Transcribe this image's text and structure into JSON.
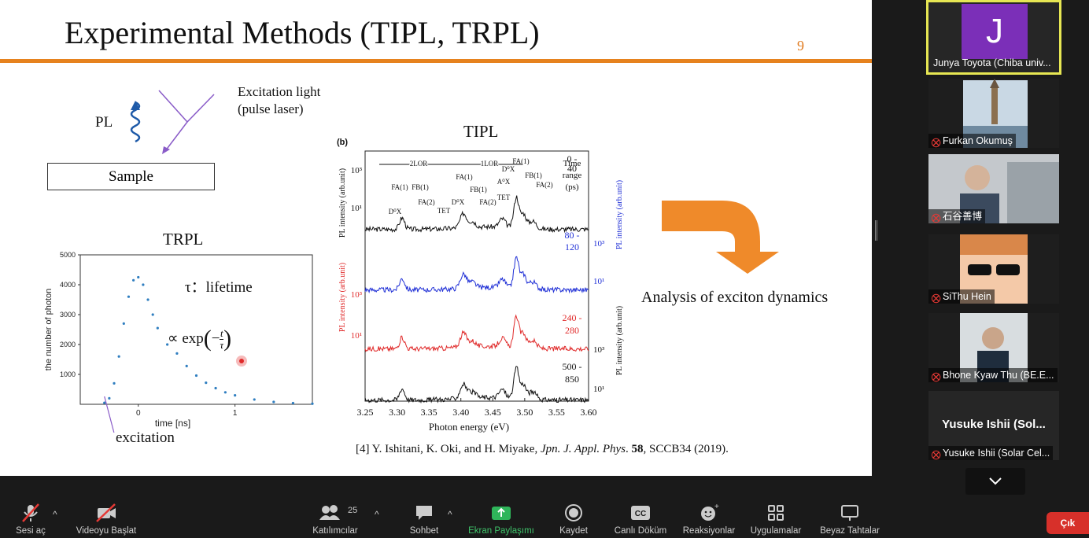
{
  "slide": {
    "title": "Experimental Methods (TIPL, TRPL)",
    "number": "9",
    "excitation_line1": "Excitation light",
    "excitation_line2": "(pulse laser)",
    "pl_label": "PL",
    "sample_label": "Sample",
    "trpl_title": "TRPL",
    "tipl_title": "TIPL",
    "lifetime_label": "τ：lifetime",
    "formula_prefix": "∝ exp",
    "excitation_annotation": "excitation",
    "analysis_label": "Analysis of exciton dynamics",
    "ref": {
      "authors": "[4] Y. Ishitani, K. Oki, and H. Miyake, ",
      "journal": "Jpn. J. Appl. Phys",
      "sep": ". ",
      "volume": "58",
      "rest": ", SCCB34 (2019)."
    }
  },
  "chart_data": [
    {
      "type": "scatter",
      "title": "TRPL",
      "xlabel": "time [ns]",
      "ylabel": "the number of photon",
      "xlim": [
        -0.6,
        1.8
      ],
      "ylim": [
        0,
        5000
      ],
      "x_ticks": [
        "0",
        "1"
      ],
      "y_ticks": [
        "1000",
        "2000",
        "3000",
        "4000",
        "5000"
      ],
      "x": [
        -0.35,
        -0.3,
        -0.25,
        -0.2,
        -0.15,
        -0.1,
        -0.05,
        0.0,
        0.05,
        0.1,
        0.15,
        0.2,
        0.3,
        0.4,
        0.5,
        0.6,
        0.7,
        0.8,
        0.9,
        1.0,
        1.2,
        1.4,
        1.6,
        1.8
      ],
      "y": [
        50,
        200,
        700,
        1600,
        2700,
        3600,
        4150,
        4250,
        4000,
        3500,
        3000,
        2550,
        2000,
        1700,
        1280,
        960,
        720,
        540,
        400,
        300,
        160,
        80,
        40,
        20
      ],
      "color": "#2f7ec0"
    },
    {
      "type": "line",
      "panel_label": "(b)",
      "xlabel": "Photon energy (eV)",
      "xlim": [
        3.25,
        3.6
      ],
      "x_ticks": [
        "3.25",
        "3.30",
        "3.35",
        "3.40",
        "3.45",
        "3.50",
        "3.55",
        "3.60"
      ],
      "left_ylabels": [
        "PL intensity (arb.unit)",
        "PL intensity (arb.unit)"
      ],
      "right_ylabels": [
        "PL intensity (arb.unit)",
        "PL intensity (arb.unit)"
      ],
      "y_ticks": [
        "10³",
        "10¹",
        "10³",
        "10¹",
        "10³",
        "10¹",
        "10³",
        "10¹"
      ],
      "range_labels": [
        "2LOR",
        "1LOR"
      ],
      "legend_title": "Time range (ps)",
      "peak_labels": [
        "D⁰X",
        "FA(1)",
        "FB(1)",
        "FA(2)",
        "TET",
        "D⁰X",
        "FA(1)",
        "FB(1)",
        "FA(2)",
        "A⁰X",
        "TET",
        "D⁰X",
        "FA(1)",
        "FB(1)",
        "FA(2)"
      ],
      "series": [
        {
          "name": "0 - 40",
          "color": "#111111"
        },
        {
          "name": "80 - 120",
          "color": "#1f2fd6"
        },
        {
          "name": "240 - 280",
          "color": "#e02a2a"
        },
        {
          "name": "500 - 850",
          "color": "#111111"
        }
      ]
    }
  ],
  "participants": [
    {
      "initial": "J",
      "name": "Junya Toyota (Chiba univ..."
    },
    {
      "name": "Furkan Okumuş"
    },
    {
      "name": "石谷善博"
    },
    {
      "name": "SiThu Hein"
    },
    {
      "name": "Bhone Kyaw Thu (BE.E..."
    },
    {
      "display": "Yusuke Ishii (Sol...",
      "name": "Yusuke Ishii (Solar Cel..."
    }
  ],
  "toolbar": {
    "unmute": "Sesi aç",
    "start_video": "Videoyu Başlat",
    "participants": "Katılımcılar",
    "participant_count": "25",
    "chat": "Sohbet",
    "share_screen": "Ekran Paylaşımı",
    "record": "Kaydet",
    "live_transcript": "Canlı Döküm",
    "reactions": "Reaksiyonlar",
    "apps": "Uygulamalar",
    "whiteboards": "Beyaz Tahtalar",
    "leave": "Çık"
  }
}
